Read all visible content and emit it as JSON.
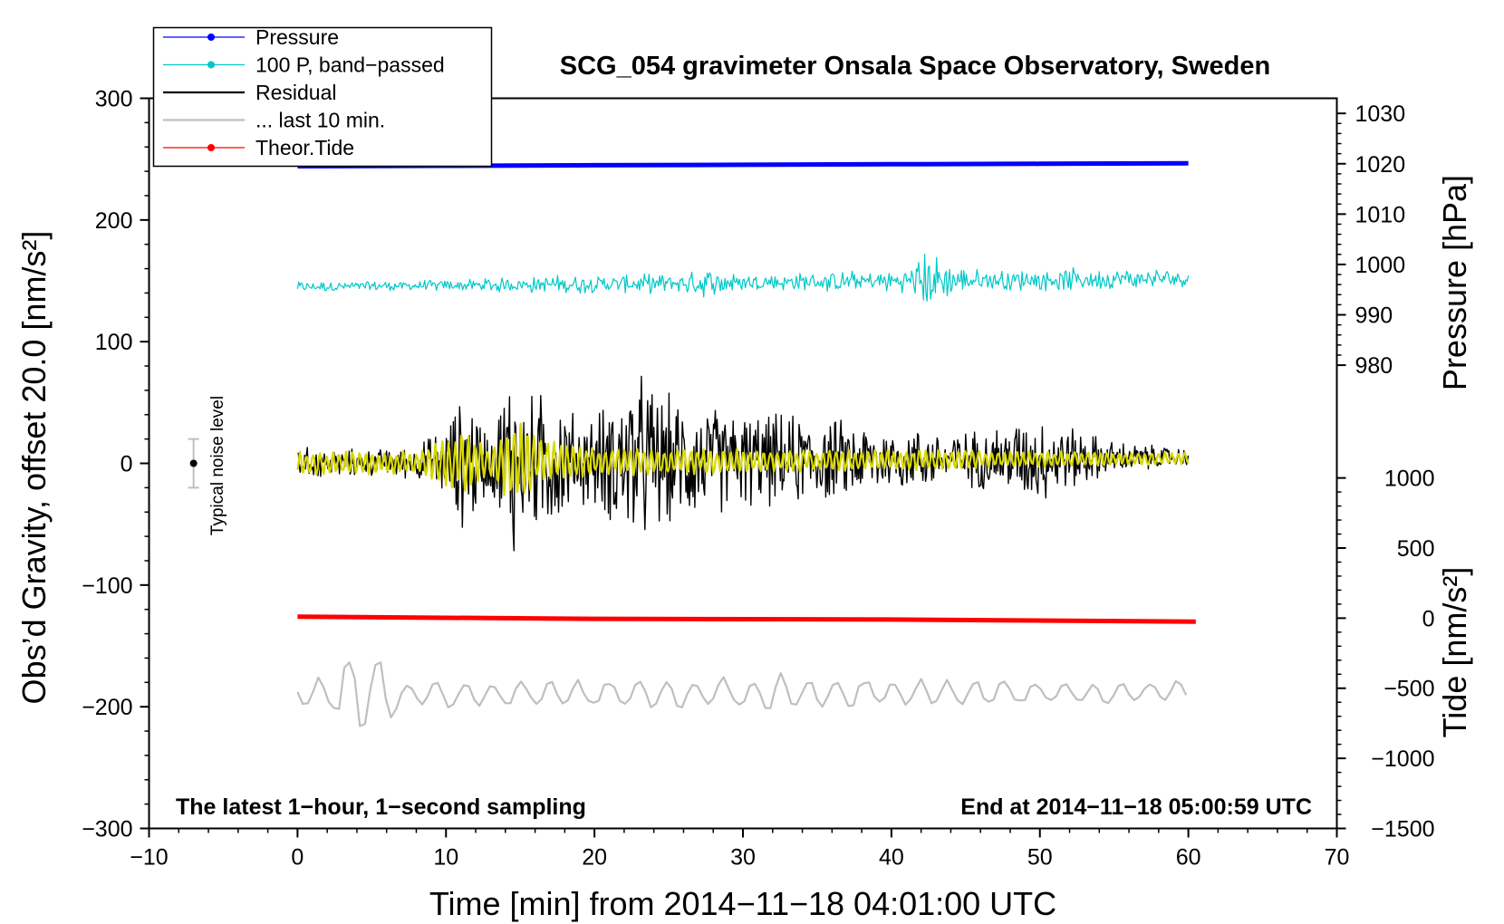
{
  "chart_data": {
    "type": "line",
    "title": "SCG_054 gravimeter Onsala Space Observatory, Sweden",
    "xlabel": "Time [min] from 2014−11−18 04:01:00 UTC",
    "ylabel_left": "Obs’d Gravity, offset 20.0 [nm/s²]",
    "ylabel_right_top": "Pressure [hPa]",
    "ylabel_right_bottom": "Tide [nm/s²]",
    "xlim": [
      -10,
      70
    ],
    "ylim": [
      -300,
      300
    ],
    "pressure_axis_range": [
      975,
      1033
    ],
    "tide_axis_range": [
      -1500,
      1000
    ],
    "xticks": [
      -10,
      0,
      10,
      20,
      30,
      40,
      50,
      60,
      70
    ],
    "xtick_labels": [
      "−10",
      "0",
      "10",
      "20",
      "30",
      "40",
      "50",
      "60",
      "70"
    ],
    "yticks": [
      300,
      200,
      100,
      0,
      -100,
      -200,
      -300
    ],
    "ytick_labels": [
      "300",
      "200",
      "100",
      "0",
      "−100",
      "−200",
      "−300"
    ],
    "pressure_ticks": [
      1030,
      1020,
      1010,
      1000,
      990,
      980
    ],
    "pressure_tick_labels": [
      "1030",
      "1020",
      "1010",
      "1000",
      "990",
      "980"
    ],
    "tide_ticks": [
      1000,
      500,
      0,
      -500,
      -1000,
      -1500
    ],
    "tide_tick_labels": [
      "1000",
      "500",
      "0",
      "−500",
      "−1000",
      "−1500"
    ],
    "grid": false,
    "legend_position": "top-left",
    "legend": [
      {
        "label": "Pressure",
        "color": "#0000ff",
        "marker": "dot"
      },
      {
        "label": "100 P, band−passed",
        "color": "#00c8c8",
        "marker": "dot"
      },
      {
        "label": "Residual",
        "color": "#000000",
        "marker": "none"
      },
      {
        "label": "... last 10 min.",
        "color": "#bfbfbf",
        "marker": "none"
      },
      {
        "label": "Theor.Tide",
        "color": "#ff0000",
        "marker": "dot"
      }
    ],
    "annotations": {
      "noise_label": "Typical noise level",
      "bottom_left": "The latest 1−hour, 1−second sampling",
      "bottom_right": "End at 2014−11−18 05:00:59 UTC"
    },
    "noise_bar": {
      "x": -7,
      "center": 0,
      "low": -20,
      "high": 20
    },
    "series": [
      {
        "name": "Pressure",
        "axis": "pressure",
        "color": "#0000ff",
        "x": [
          0,
          10,
          20,
          30,
          40,
          50,
          60
        ],
        "values": [
          1019.5,
          1019.6,
          1019.7,
          1019.8,
          1019.9,
          1020.0,
          1020.1
        ]
      },
      {
        "name": "100 P, band−passed",
        "axis": "gravity",
        "color": "#00c8c8",
        "x": [
          0,
          60
        ],
        "baseline": [
          145,
          152
        ],
        "envelope": [
          [
            0,
            5
          ],
          [
            10,
            5
          ],
          [
            17,
            8
          ],
          [
            20,
            8
          ],
          [
            26,
            9
          ],
          [
            28.5,
            15
          ],
          [
            30,
            8
          ],
          [
            41,
            10
          ],
          [
            42,
            30
          ],
          [
            45,
            10
          ],
          [
            52,
            10
          ],
          [
            60,
            8
          ]
        ]
      },
      {
        "name": "Residual",
        "axis": "gravity",
        "color": "#000000",
        "x": [
          0,
          60
        ],
        "baseline": [
          0,
          5
        ],
        "envelope": [
          [
            0,
            15
          ],
          [
            5,
            12
          ],
          [
            8,
            15
          ],
          [
            10,
            35
          ],
          [
            11.5,
            70
          ],
          [
            12,
            55
          ],
          [
            13,
            25
          ],
          [
            14.5,
            100
          ],
          [
            15.5,
            60
          ],
          [
            17,
            70
          ],
          [
            19,
            40
          ],
          [
            21,
            55
          ],
          [
            22.5,
            85
          ],
          [
            25,
            60
          ],
          [
            28,
            50
          ],
          [
            30,
            45
          ],
          [
            35,
            40
          ],
          [
            40,
            30
          ],
          [
            45,
            25
          ],
          [
            50,
            40
          ],
          [
            55,
            15
          ],
          [
            60,
            8
          ]
        ]
      },
      {
        "name": "yellow-overlay",
        "axis": "gravity",
        "color": "#d8d800",
        "x": [
          0,
          60
        ],
        "baseline": [
          0,
          4
        ],
        "envelope": [
          [
            0,
            10
          ],
          [
            8,
            10
          ],
          [
            10,
            20
          ],
          [
            11.5,
            30
          ],
          [
            13,
            12
          ],
          [
            14.8,
            45
          ],
          [
            16,
            20
          ],
          [
            20,
            12
          ],
          [
            30,
            10
          ],
          [
            45,
            8
          ],
          [
            60,
            5
          ]
        ]
      },
      {
        "name": "Theor.Tide",
        "axis": "tide",
        "color": "#ff0000",
        "x": [
          0,
          20,
          40,
          60.5
        ],
        "values": [
          10,
          -5,
          -10,
          -25
        ]
      },
      {
        "name": "... last 10 min.",
        "axis": "gravity",
        "color": "#bfbfbf",
        "x": [
          0,
          60
        ],
        "baseline": [
          -190,
          -188
        ],
        "envelope": [
          [
            0,
            10
          ],
          [
            2.5,
            20
          ],
          [
            3.5,
            45
          ],
          [
            4.2,
            45
          ],
          [
            5.5,
            30
          ],
          [
            7,
            12
          ],
          [
            20,
            12
          ],
          [
            30,
            14
          ],
          [
            31.5,
            18
          ],
          [
            40,
            12
          ],
          [
            60,
            10
          ]
        ]
      }
    ]
  }
}
